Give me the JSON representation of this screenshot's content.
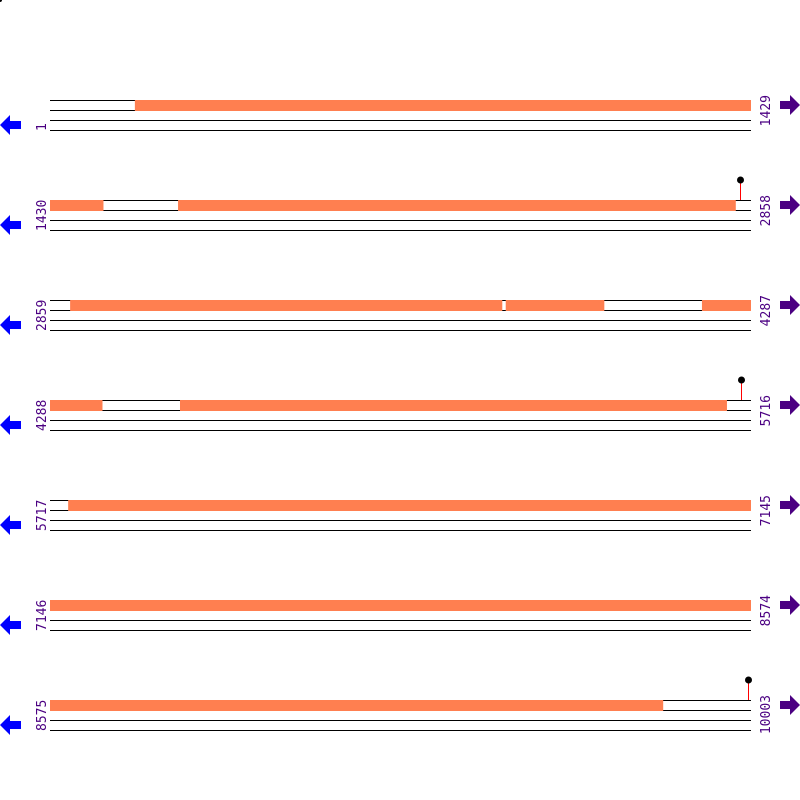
{
  "colors": {
    "feature": "#ff7f50",
    "strand_line": "#000000",
    "left_arrow": "#0000ff",
    "right_arrow": "#4b0082",
    "label": "#4b0082",
    "site_stick": "#ff0000",
    "site_head": "#000000"
  },
  "icons": {
    "left": "arrow-left-icon",
    "right": "arrow-right-icon"
  },
  "rows": [
    {
      "start": "1",
      "end": "1429",
      "s": 1,
      "e": 1429,
      "features": [
        [
          174,
          1429
        ]
      ],
      "sites": []
    },
    {
      "start": "1430",
      "end": "2858",
      "s": 1430,
      "e": 2858,
      "features": [
        [
          1430,
          1538
        ],
        [
          1691,
          2827
        ]
      ],
      "sites": [
        2836
      ]
    },
    {
      "start": "2859",
      "end": "4287",
      "s": 2859,
      "e": 4287,
      "features": [
        [
          2900,
          3780
        ],
        [
          3788,
          3988
        ],
        [
          4188,
          4287
        ]
      ],
      "sites": []
    },
    {
      "start": "4288",
      "end": "5716",
      "s": 4288,
      "e": 5716,
      "features": [
        [
          4288,
          4394
        ],
        [
          4553,
          5667
        ]
      ],
      "sites": [
        5696
      ]
    },
    {
      "start": "5717",
      "end": "7145",
      "s": 5717,
      "e": 7145,
      "features": [
        [
          5754,
          7145
        ]
      ],
      "sites": []
    },
    {
      "start": "7146",
      "end": "8574",
      "s": 7146,
      "e": 8574,
      "features": [
        [
          7146,
          8574
        ]
      ],
      "sites": []
    },
    {
      "start": "8575",
      "end": "10003",
      "s": 8575,
      "e": 10003,
      "features": [
        [
          8575,
          9824
        ]
      ],
      "sites": [
        9998
      ]
    }
  ]
}
